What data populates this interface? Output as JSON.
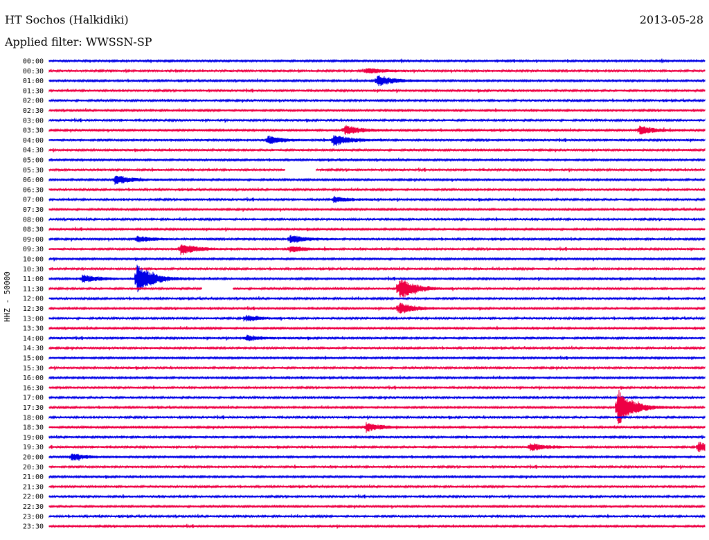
{
  "header": {
    "station": "HT Sochos (Halkidiki)",
    "date": "2013-05-28",
    "filter_prefix": "Applied filter: ",
    "filter": "WWSSN-SP"
  },
  "channel_label": "HHZ - 50000",
  "colors": {
    "trace_even": "#0000e6",
    "trace_odd": "#ee0044",
    "background": "#ffffff"
  },
  "chart_data": {
    "type": "line",
    "title": "HT Sochos (Halkidiki)",
    "subtitle": "Applied filter: WWSSN-SP",
    "ylabel": "HHZ - 50000",
    "y_tick_labels": [
      "00:00",
      "00:30",
      "01:00",
      "01:30",
      "02:00",
      "02:30",
      "03:00",
      "03:30",
      "04:00",
      "04:30",
      "05:00",
      "05:30",
      "06:00",
      "06:30",
      "07:00",
      "07:30",
      "08:00",
      "08:30",
      "09:00",
      "09:30",
      "10:00",
      "10:30",
      "11:00",
      "11:30",
      "12:00",
      "12:30",
      "13:00",
      "13:30",
      "14:00",
      "14:30",
      "15:00",
      "15:30",
      "16:00",
      "16:30",
      "17:00",
      "17:30",
      "18:00",
      "18:30",
      "19:00",
      "19:30",
      "20:00",
      "20:30",
      "21:00",
      "21:30",
      "22:00",
      "22:30",
      "23:00",
      "23:30"
    ],
    "x_minutes_per_line": 30,
    "events": [
      {
        "line": "00:30",
        "minute": 14.5,
        "amplitude": 0.6
      },
      {
        "line": "01:00",
        "minute": 15.0,
        "amplitude": 1.2
      },
      {
        "line": "03:30",
        "minute": 13.5,
        "amplitude": 1.0
      },
      {
        "line": "03:30",
        "minute": 27.0,
        "amplitude": 0.9
      },
      {
        "line": "04:00",
        "minute": 13.0,
        "amplitude": 1.3
      },
      {
        "line": "04:00",
        "minute": 10.0,
        "amplitude": 0.8
      },
      {
        "line": "06:00",
        "minute": 3.0,
        "amplitude": 1.0
      },
      {
        "line": "07:00",
        "minute": 13.0,
        "amplitude": 0.6
      },
      {
        "line": "09:00",
        "minute": 11.0,
        "amplitude": 0.8
      },
      {
        "line": "09:00",
        "minute": 4.0,
        "amplitude": 0.6
      },
      {
        "line": "09:30",
        "minute": 6.0,
        "amplitude": 1.2
      },
      {
        "line": "09:30",
        "minute": 11.0,
        "amplitude": 0.7
      },
      {
        "line": "11:00",
        "minute": 4.0,
        "amplitude": 3.5
      },
      {
        "line": "11:00",
        "minute": 1.5,
        "amplitude": 0.8
      },
      {
        "line": "11:30",
        "minute": 16.0,
        "amplitude": 2.5
      },
      {
        "line": "12:30",
        "minute": 16.0,
        "amplitude": 1.2
      },
      {
        "line": "13:00",
        "minute": 9.0,
        "amplitude": 0.6
      },
      {
        "line": "14:00",
        "minute": 9.0,
        "amplitude": 0.6
      },
      {
        "line": "17:30",
        "minute": 26.0,
        "amplitude": 4.0
      },
      {
        "line": "18:30",
        "minute": 14.5,
        "amplitude": 0.9
      },
      {
        "line": "19:30",
        "minute": 22.0,
        "amplitude": 0.8
      },
      {
        "line": "19:30",
        "minute": 29.7,
        "amplitude": 1.0
      },
      {
        "line": "20:00",
        "minute": 1.0,
        "amplitude": 0.7
      }
    ],
    "gaps": [
      {
        "line": "05:30",
        "start_minute": 10.8,
        "end_minute": 12.2
      },
      {
        "line": "11:30",
        "start_minute": 7.0,
        "end_minute": 8.4
      }
    ]
  }
}
